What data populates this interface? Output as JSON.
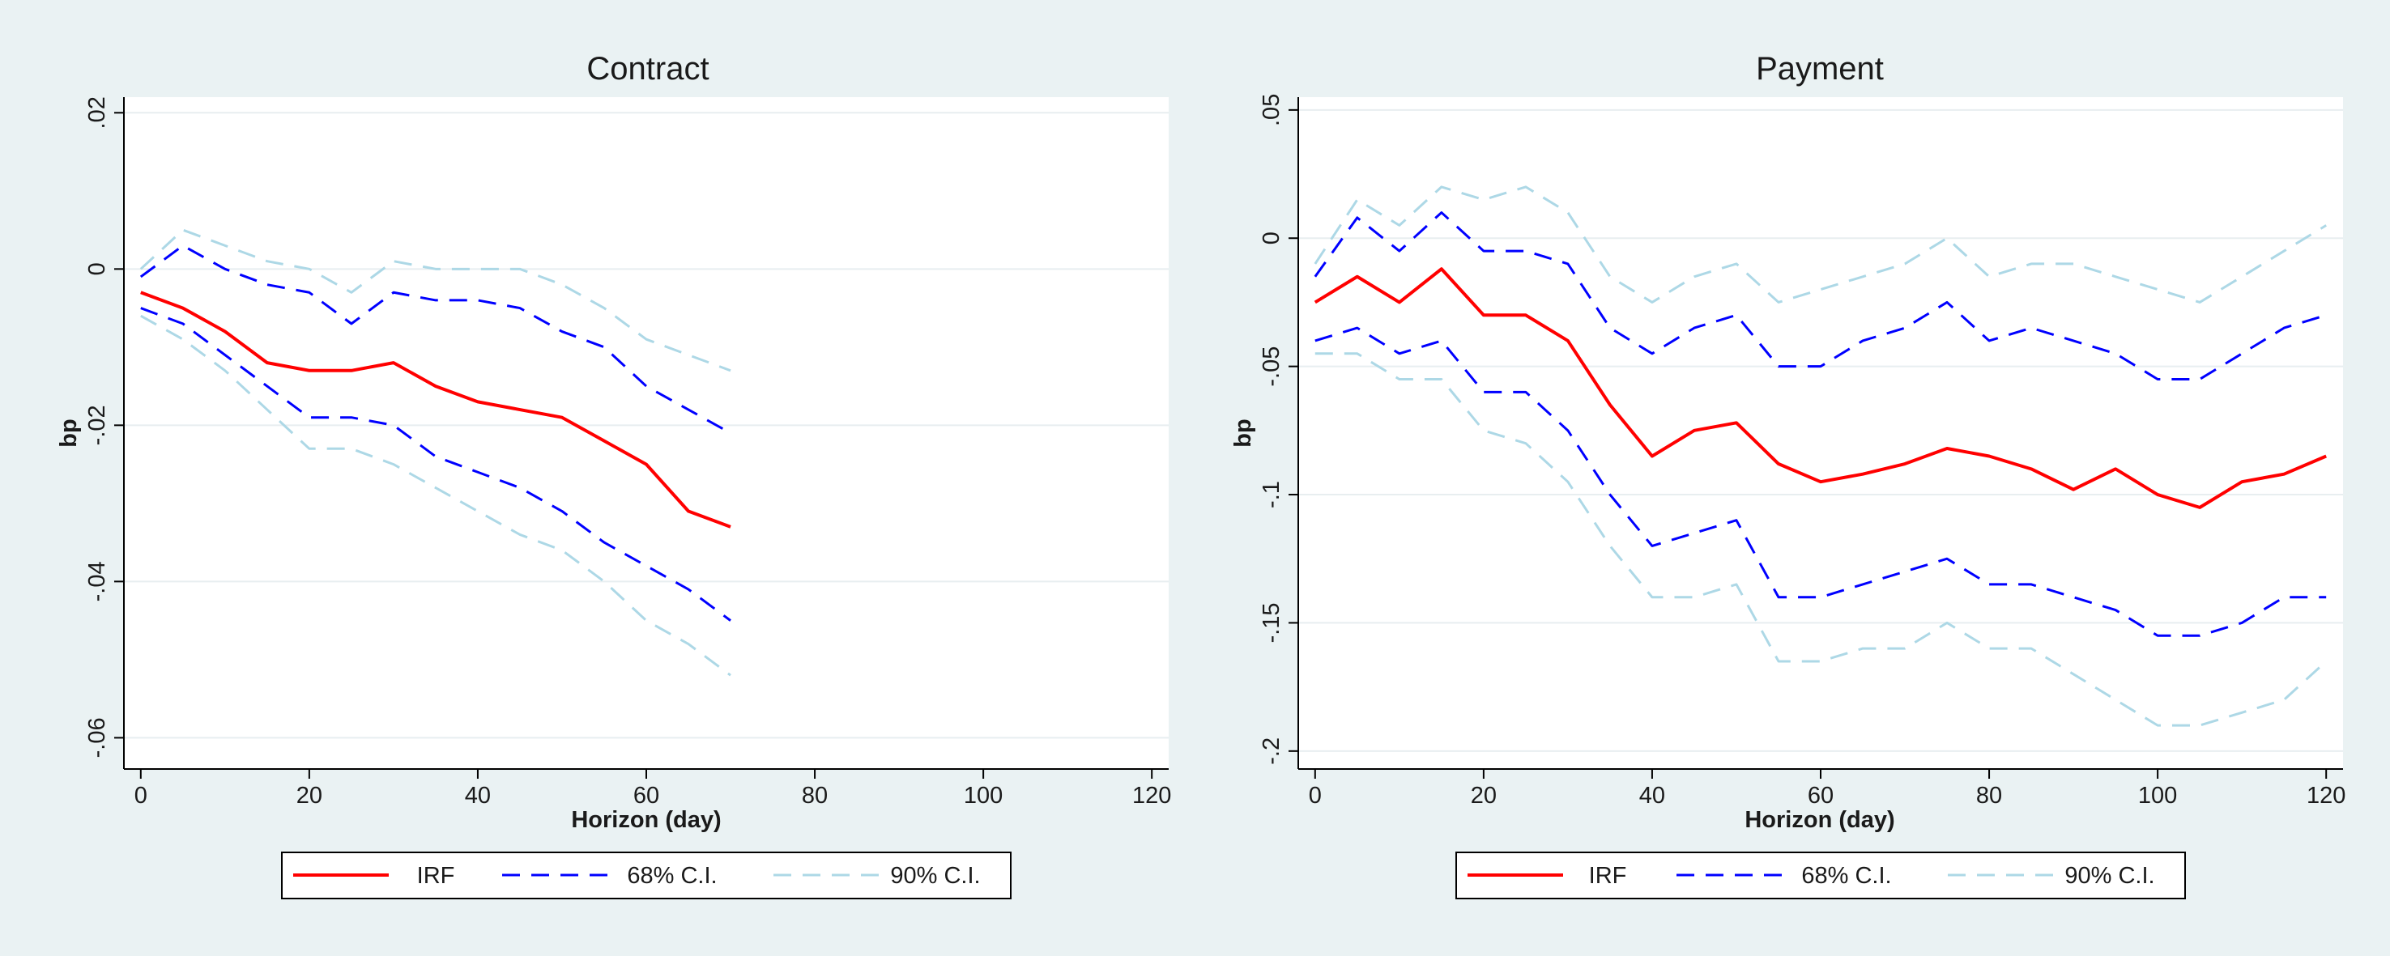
{
  "chart_data": [
    {
      "type": "line",
      "title": "Contract",
      "xlabel": "Horizon (day)",
      "ylabel": "bp",
      "xlim": [
        -2,
        122
      ],
      "ylim": [
        -0.064,
        0.022
      ],
      "xticks": [
        0,
        20,
        40,
        60,
        80,
        100,
        120
      ],
      "xtick_labels": [
        "0",
        "20",
        "40",
        "60",
        "80",
        "100",
        "120"
      ],
      "yticks": [
        0.02,
        0,
        -0.02,
        -0.04,
        -0.06
      ],
      "ytick_labels": [
        ".02",
        "0",
        "-.02",
        "-.04",
        "-.06"
      ],
      "grid": true,
      "legend": "bottom",
      "legend_entries": [
        "IRF",
        "68% C.I.",
        "90% C.I."
      ],
      "x_step": 5,
      "series": [
        {
          "name": "IRF",
          "color": "#ff0000",
          "style": "solid",
          "values": [
            -0.003,
            -0.005,
            -0.008,
            -0.012,
            -0.013,
            -0.013,
            -0.012,
            -0.015,
            -0.017,
            -0.018,
            -0.019,
            -0.022,
            -0.025,
            -0.031,
            -0.033
          ]
        },
        {
          "name": "68% C.I.",
          "color": "#0000ff",
          "style": "dashed",
          "upper": true,
          "values": [
            -0.001,
            0.003,
            0.0,
            -0.002,
            -0.003,
            -0.007,
            -0.003,
            -0.004,
            -0.004,
            -0.005,
            -0.008,
            -0.01,
            -0.015,
            -0.018,
            -0.021
          ]
        },
        {
          "name": "68% C.I.",
          "color": "#0000ff",
          "style": "dashed",
          "upper": false,
          "values": [
            -0.005,
            -0.007,
            -0.011,
            -0.015,
            -0.019,
            -0.019,
            -0.02,
            -0.024,
            -0.026,
            -0.028,
            -0.031,
            -0.035,
            -0.038,
            -0.041,
            -0.045
          ]
        },
        {
          "name": "90% C.I.",
          "color": "#add8e6",
          "style": "dashed",
          "upper": true,
          "values": [
            0.0,
            0.005,
            0.003,
            0.001,
            0.0,
            -0.003,
            0.001,
            0.0,
            0.0,
            0.0,
            -0.002,
            -0.005,
            -0.009,
            -0.011,
            -0.013
          ]
        },
        {
          "name": "90% C.I.",
          "color": "#add8e6",
          "style": "dashed",
          "upper": false,
          "values": [
            -0.006,
            -0.009,
            -0.013,
            -0.018,
            -0.023,
            -0.023,
            -0.025,
            -0.028,
            -0.031,
            -0.034,
            -0.036,
            -0.04,
            -0.045,
            -0.048,
            -0.052
          ]
        }
      ]
    },
    {
      "type": "line",
      "title": "Payment",
      "xlabel": "Horizon (day)",
      "ylabel": "bp",
      "xlim": [
        -2,
        122
      ],
      "ylim": [
        -0.207,
        0.055
      ],
      "xticks": [
        0,
        20,
        40,
        60,
        80,
        100,
        120
      ],
      "xtick_labels": [
        "0",
        "20",
        "40",
        "60",
        "80",
        "100",
        "120"
      ],
      "yticks": [
        0.05,
        0,
        -0.05,
        -0.1,
        -0.15,
        -0.2
      ],
      "ytick_labels": [
        ".05",
        "0",
        "-.05",
        "-.1",
        "-.15",
        "-.2"
      ],
      "grid": true,
      "legend": "bottom",
      "legend_entries": [
        "IRF",
        "68% C.I.",
        "90% C.I."
      ],
      "x_step": 5,
      "series": [
        {
          "name": "IRF",
          "color": "#ff0000",
          "style": "solid",
          "values": [
            -0.025,
            -0.015,
            -0.025,
            -0.012,
            -0.03,
            -0.03,
            -0.04,
            -0.065,
            -0.085,
            -0.075,
            -0.072,
            -0.088,
            -0.095,
            -0.092,
            -0.088,
            -0.082,
            -0.085,
            -0.09,
            -0.098,
            -0.09,
            -0.1,
            -0.105,
            -0.095,
            -0.092,
            -0.085
          ]
        },
        {
          "name": "68% C.I.",
          "color": "#0000ff",
          "style": "dashed",
          "upper": true,
          "values": [
            -0.015,
            0.008,
            -0.005,
            0.01,
            -0.005,
            -0.005,
            -0.01,
            -0.035,
            -0.045,
            -0.035,
            -0.03,
            -0.05,
            -0.05,
            -0.04,
            -0.035,
            -0.025,
            -0.04,
            -0.035,
            -0.04,
            -0.045,
            -0.055,
            -0.055,
            -0.045,
            -0.035,
            -0.03
          ]
        },
        {
          "name": "68% C.I.",
          "color": "#0000ff",
          "style": "dashed",
          "upper": false,
          "values": [
            -0.04,
            -0.035,
            -0.045,
            -0.04,
            -0.06,
            -0.06,
            -0.075,
            -0.1,
            -0.12,
            -0.115,
            -0.11,
            -0.14,
            -0.14,
            -0.135,
            -0.13,
            -0.125,
            -0.135,
            -0.135,
            -0.14,
            -0.145,
            -0.155,
            -0.155,
            -0.15,
            -0.14,
            -0.14
          ]
        },
        {
          "name": "90% C.I.",
          "color": "#add8e6",
          "style": "dashed",
          "upper": true,
          "values": [
            -0.01,
            0.015,
            0.005,
            0.02,
            0.015,
            0.02,
            0.01,
            -0.015,
            -0.025,
            -0.015,
            -0.01,
            -0.025,
            -0.02,
            -0.015,
            -0.01,
            0.0,
            -0.015,
            -0.01,
            -0.01,
            -0.015,
            -0.02,
            -0.025,
            -0.015,
            -0.005,
            0.005
          ]
        },
        {
          "name": "90% C.I.",
          "color": "#add8e6",
          "style": "dashed",
          "upper": false,
          "values": [
            -0.045,
            -0.045,
            -0.055,
            -0.055,
            -0.075,
            -0.08,
            -0.095,
            -0.12,
            -0.14,
            -0.14,
            -0.135,
            -0.165,
            -0.165,
            -0.16,
            -0.16,
            -0.15,
            -0.16,
            -0.16,
            -0.17,
            -0.18,
            -0.19,
            -0.19,
            -0.185,
            -0.18,
            -0.165
          ]
        }
      ]
    }
  ]
}
